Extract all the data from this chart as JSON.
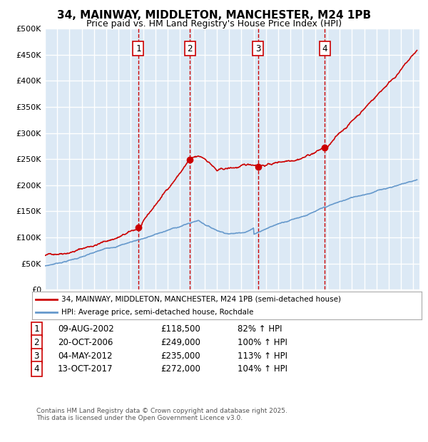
{
  "title": "34, MAINWAY, MIDDLETON, MANCHESTER, M24 1PB",
  "subtitle": "Price paid vs. HM Land Registry's House Price Index (HPI)",
  "ylim": [
    0,
    500000
  ],
  "yticks": [
    0,
    50000,
    100000,
    150000,
    200000,
    250000,
    300000,
    350000,
    400000,
    450000,
    500000
  ],
  "ytick_labels": [
    "£0",
    "£50K",
    "£100K",
    "£150K",
    "£200K",
    "£250K",
    "£300K",
    "£350K",
    "£400K",
    "£450K",
    "£500K"
  ],
  "plot_bg_color": "#dce9f5",
  "line1_color": "#cc0000",
  "line2_color": "#6699cc",
  "vline_color": "#cc0000",
  "grid_color": "#ffffff",
  "transactions": [
    {
      "date_x": 2002.6,
      "price": 118500,
      "label": "1"
    },
    {
      "date_x": 2006.8,
      "price": 249000,
      "label": "2"
    },
    {
      "date_x": 2012.35,
      "price": 235000,
      "label": "3"
    },
    {
      "date_x": 2017.78,
      "price": 272000,
      "label": "4"
    }
  ],
  "table_rows": [
    [
      "1",
      "09-AUG-2002",
      "£118,500",
      "82% ↑ HPI"
    ],
    [
      "2",
      "20-OCT-2006",
      "£249,000",
      "100% ↑ HPI"
    ],
    [
      "3",
      "04-MAY-2012",
      "£235,000",
      "113% ↑ HPI"
    ],
    [
      "4",
      "13-OCT-2017",
      "£272,000",
      "104% ↑ HPI"
    ]
  ],
  "legend_labels": [
    "34, MAINWAY, MIDDLETON, MANCHESTER, M24 1PB (semi-detached house)",
    "HPI: Average price, semi-detached house, Rochdale"
  ],
  "footer": "Contains HM Land Registry data © Crown copyright and database right 2025.\nThis data is licensed under the Open Government Licence v3.0.",
  "xmin": 1995,
  "xmax": 2025.5
}
